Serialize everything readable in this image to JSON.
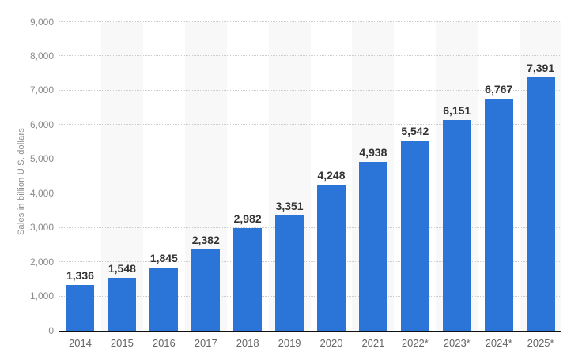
{
  "chart_data": {
    "type": "bar",
    "title": "",
    "xlabel": "",
    "ylabel": "Sales in billion U.S. dollars",
    "categories": [
      "2014",
      "2015",
      "2016",
      "2017",
      "2018",
      "2019",
      "2020",
      "2021",
      "2022*",
      "2023*",
      "2024*",
      "2025*"
    ],
    "values": [
      1336,
      1548,
      1845,
      2382,
      2982,
      3351,
      4248,
      4938,
      5542,
      6151,
      6767,
      7391
    ],
    "value_labels": [
      "1,336",
      "1,548",
      "1,845",
      "2,382",
      "2,982",
      "3,351",
      "4,248",
      "4,938",
      "5,542",
      "6,151",
      "6,767",
      "7,391"
    ],
    "ylim": [
      0,
      9000
    ],
    "ytick_step": 1000,
    "ytick_labels": [
      "0",
      "1,000",
      "2,000",
      "3,000",
      "4,000",
      "5,000",
      "6,000",
      "7,000",
      "8,000",
      "9,000"
    ],
    "grid": "horizontal-dotted",
    "legend": "none",
    "striped_column_indices": [
      1,
      3,
      5,
      7,
      9,
      11
    ],
    "colors": {
      "bar": "#2b74d8",
      "value_label": "#333333",
      "x_label": "#666666",
      "y_tick": "#8b8b8b",
      "y_axis_title": "#8b8b8b",
      "gridline": "#cccccc",
      "axis_line": "#111111",
      "column_stripe": "#f8f8f8",
      "background": "#ffffff"
    }
  }
}
